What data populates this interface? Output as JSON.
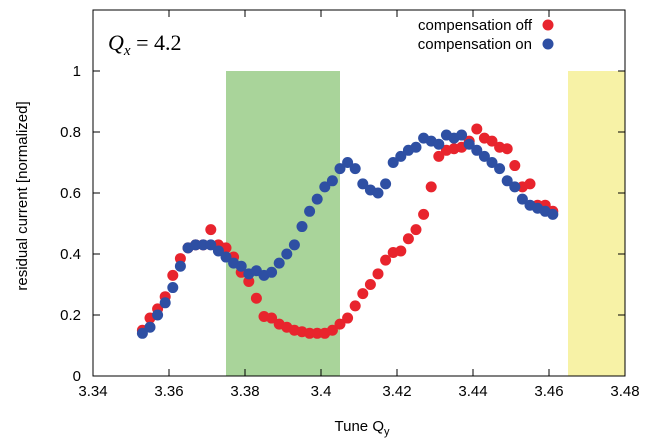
{
  "chart_data": {
    "type": "scatter",
    "xlabel": "Tune Q",
    "xlabel_sub": "y",
    "ylabel": "residual current [normalized]",
    "xlim": [
      3.34,
      3.48
    ],
    "ylim": [
      0,
      1.2
    ],
    "x_ticks": [
      3.34,
      3.36,
      3.38,
      3.4,
      3.42,
      3.44,
      3.46,
      3.48
    ],
    "x_tick_labels": [
      "3.34",
      "3.36",
      "3.38",
      "3.4",
      "3.42",
      "3.44",
      "3.46",
      "3.48"
    ],
    "y_ticks": [
      0,
      0.2,
      0.4,
      0.6,
      0.8,
      1
    ],
    "y_tick_labels": [
      "0",
      "0.2",
      "0.4",
      "0.6",
      "0.8",
      "1"
    ],
    "grid": false,
    "legend_position": "top-right",
    "annotation": {
      "variable": "Q",
      "subscript": "x",
      "text": " = 4.2"
    },
    "bands": [
      {
        "x_start": 3.375,
        "x_end": 3.405,
        "color": "#a9d49a"
      },
      {
        "x_start": 3.465,
        "x_end": 3.48,
        "color": "#f7f2a6"
      }
    ],
    "series": [
      {
        "name": "compensation off",
        "color": "#e8242d",
        "points": [
          [
            3.353,
            0.15
          ],
          [
            3.355,
            0.19
          ],
          [
            3.357,
            0.22
          ],
          [
            3.359,
            0.26
          ],
          [
            3.361,
            0.33
          ],
          [
            3.363,
            0.385
          ],
          [
            3.365,
            0.42
          ],
          [
            3.367,
            0.43
          ],
          [
            3.369,
            0.43
          ],
          [
            3.371,
            0.48
          ],
          [
            3.373,
            0.43
          ],
          [
            3.375,
            0.42
          ],
          [
            3.377,
            0.39
          ],
          [
            3.379,
            0.34
          ],
          [
            3.381,
            0.31
          ],
          [
            3.383,
            0.255
          ],
          [
            3.385,
            0.195
          ],
          [
            3.387,
            0.19
          ],
          [
            3.389,
            0.17
          ],
          [
            3.391,
            0.16
          ],
          [
            3.393,
            0.15
          ],
          [
            3.395,
            0.145
          ],
          [
            3.397,
            0.14
          ],
          [
            3.399,
            0.14
          ],
          [
            3.401,
            0.14
          ],
          [
            3.403,
            0.15
          ],
          [
            3.405,
            0.17
          ],
          [
            3.407,
            0.19
          ],
          [
            3.409,
            0.23
          ],
          [
            3.411,
            0.27
          ],
          [
            3.413,
            0.3
          ],
          [
            3.415,
            0.335
          ],
          [
            3.417,
            0.38
          ],
          [
            3.419,
            0.405
          ],
          [
            3.421,
            0.41
          ],
          [
            3.423,
            0.45
          ],
          [
            3.425,
            0.48
          ],
          [
            3.427,
            0.53
          ],
          [
            3.429,
            0.62
          ],
          [
            3.431,
            0.72
          ],
          [
            3.433,
            0.74
          ],
          [
            3.435,
            0.745
          ],
          [
            3.437,
            0.75
          ],
          [
            3.439,
            0.77
          ],
          [
            3.441,
            0.81
          ],
          [
            3.443,
            0.78
          ],
          [
            3.445,
            0.77
          ],
          [
            3.447,
            0.75
          ],
          [
            3.449,
            0.745
          ],
          [
            3.451,
            0.69
          ],
          [
            3.453,
            0.62
          ],
          [
            3.455,
            0.63
          ],
          [
            3.457,
            0.56
          ],
          [
            3.459,
            0.56
          ],
          [
            3.461,
            0.54
          ]
        ]
      },
      {
        "name": "compensation on",
        "color": "#2e4fa3",
        "points": [
          [
            3.353,
            0.14
          ],
          [
            3.355,
            0.16
          ],
          [
            3.357,
            0.2
          ],
          [
            3.359,
            0.24
          ],
          [
            3.361,
            0.29
          ],
          [
            3.363,
            0.36
          ],
          [
            3.365,
            0.42
          ],
          [
            3.367,
            0.43
          ],
          [
            3.369,
            0.43
          ],
          [
            3.371,
            0.43
          ],
          [
            3.373,
            0.41
          ],
          [
            3.375,
            0.39
          ],
          [
            3.377,
            0.37
          ],
          [
            3.379,
            0.36
          ],
          [
            3.381,
            0.335
          ],
          [
            3.383,
            0.345
          ],
          [
            3.385,
            0.33
          ],
          [
            3.387,
            0.34
          ],
          [
            3.389,
            0.37
          ],
          [
            3.391,
            0.4
          ],
          [
            3.393,
            0.43
          ],
          [
            3.395,
            0.49
          ],
          [
            3.397,
            0.54
          ],
          [
            3.399,
            0.58
          ],
          [
            3.401,
            0.62
          ],
          [
            3.403,
            0.64
          ],
          [
            3.405,
            0.68
          ],
          [
            3.407,
            0.7
          ],
          [
            3.409,
            0.68
          ],
          [
            3.411,
            0.63
          ],
          [
            3.413,
            0.61
          ],
          [
            3.415,
            0.6
          ],
          [
            3.417,
            0.63
          ],
          [
            3.419,
            0.7
          ],
          [
            3.421,
            0.72
          ],
          [
            3.423,
            0.74
          ],
          [
            3.425,
            0.75
          ],
          [
            3.427,
            0.78
          ],
          [
            3.429,
            0.77
          ],
          [
            3.431,
            0.76
          ],
          [
            3.433,
            0.79
          ],
          [
            3.435,
            0.78
          ],
          [
            3.437,
            0.79
          ],
          [
            3.439,
            0.76
          ],
          [
            3.441,
            0.74
          ],
          [
            3.443,
            0.72
          ],
          [
            3.445,
            0.7
          ],
          [
            3.447,
            0.68
          ],
          [
            3.449,
            0.64
          ],
          [
            3.451,
            0.62
          ],
          [
            3.453,
            0.58
          ],
          [
            3.455,
            0.56
          ],
          [
            3.457,
            0.55
          ],
          [
            3.459,
            0.54
          ],
          [
            3.461,
            0.53
          ]
        ]
      }
    ]
  }
}
